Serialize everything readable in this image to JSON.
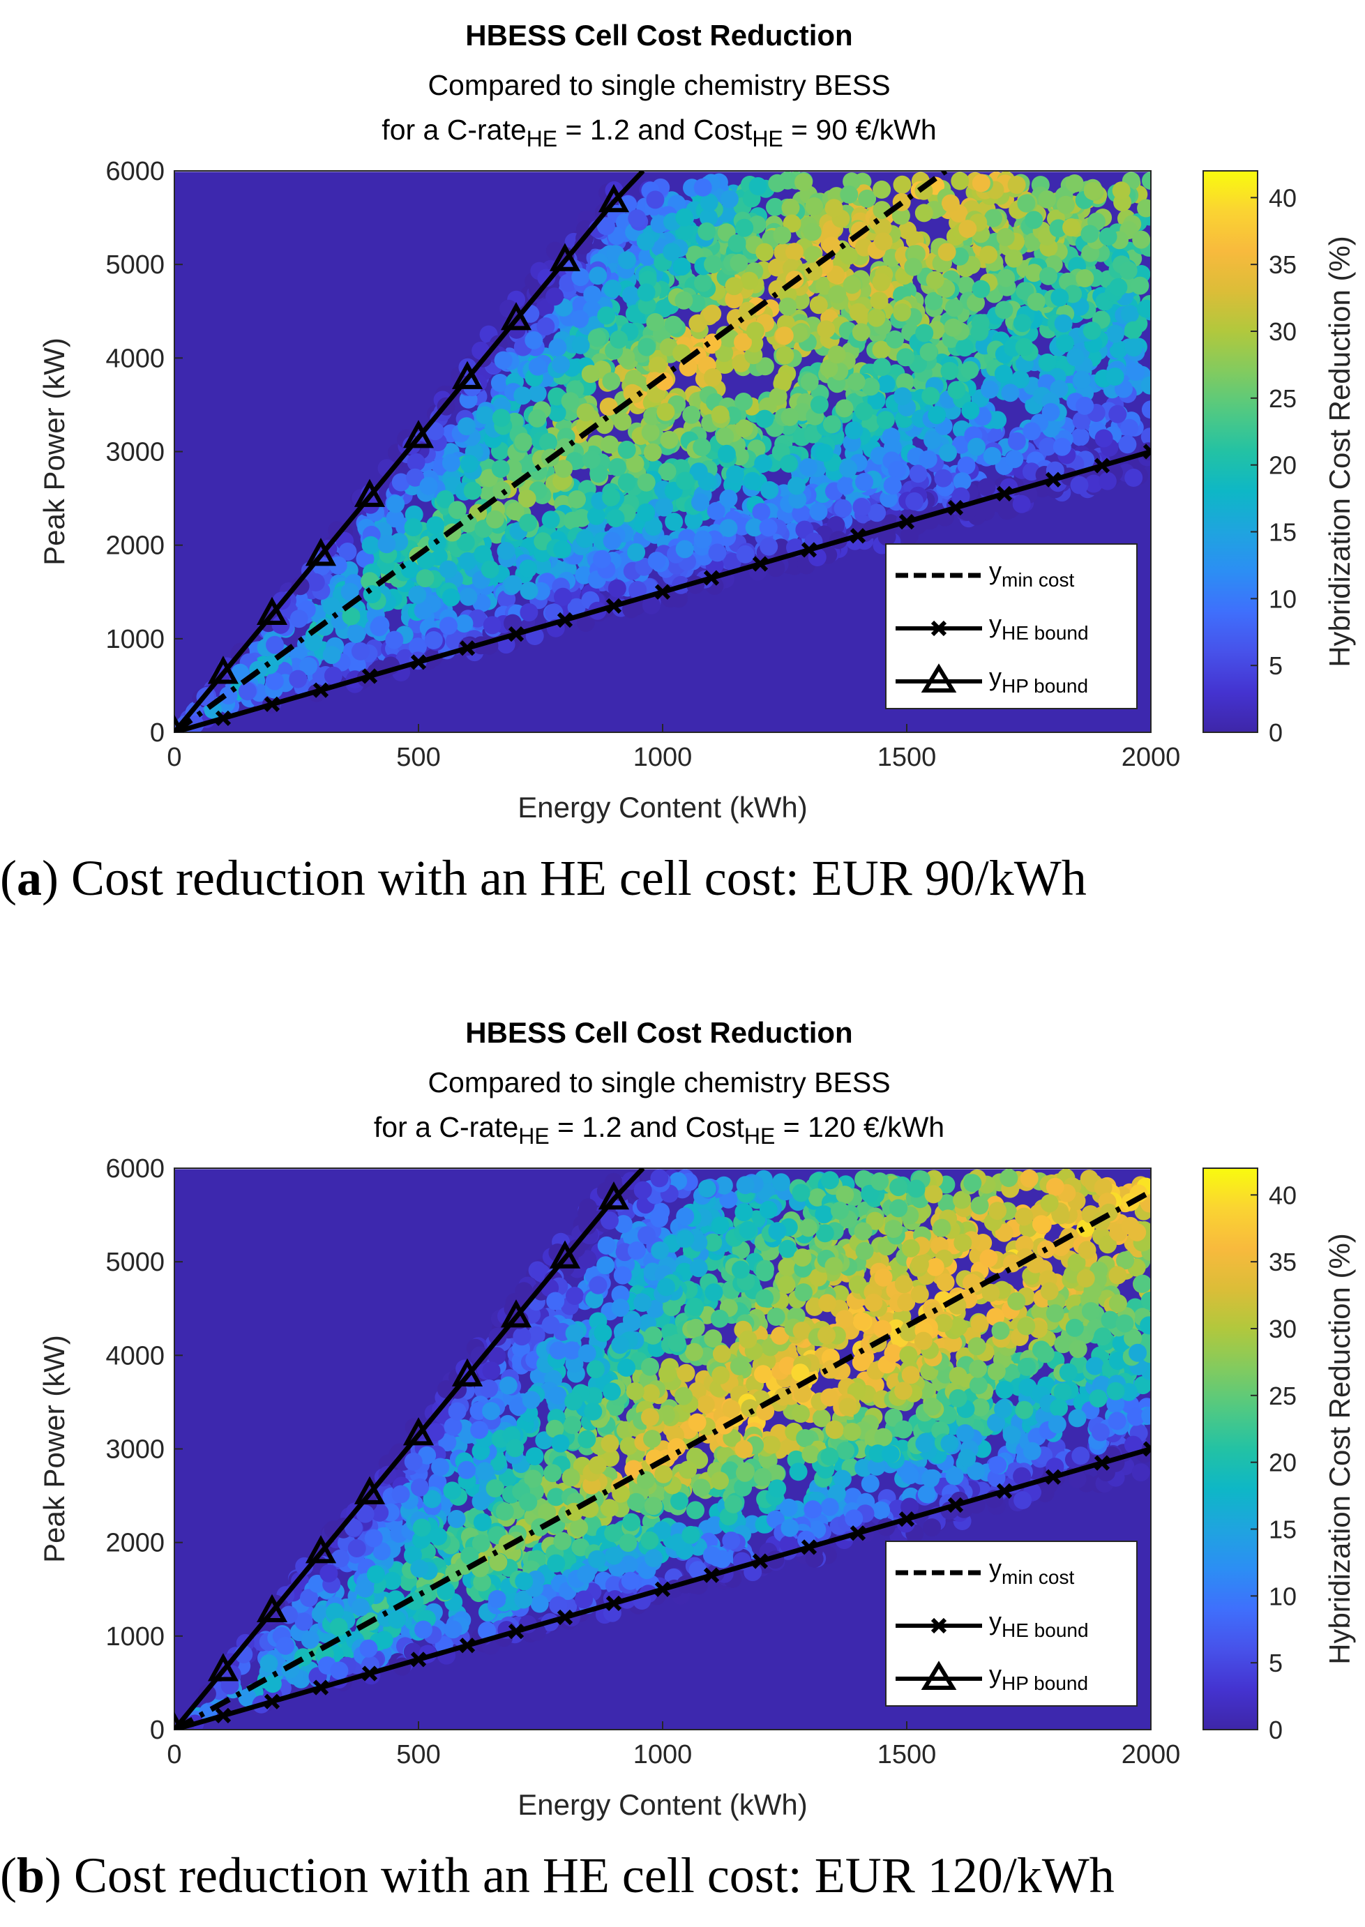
{
  "figures": [
    {
      "id": "a",
      "caption": {
        "letter": "a",
        "text": "Cost reduction with an HE cell cost: EUR 90/kWh"
      },
      "title": "HBESS Cell Cost Reduction",
      "subtitle1": "Compared to single chemistry BESS",
      "subtitle2_prefix": "for a C-rate",
      "subtitle2_sub1": "HE",
      "subtitle2_mid": " = 1.2 and Cost",
      "subtitle2_sub2": "HE",
      "subtitle2_suffix": " = 90 €/kWh"
    },
    {
      "id": "b",
      "caption": {
        "letter": "b",
        "text": "Cost reduction with an HE cell cost: EUR 120/kWh"
      },
      "title": "HBESS Cell Cost Reduction",
      "subtitle1": "Compared to single chemistry BESS",
      "subtitle2_prefix": "for a C-rate",
      "subtitle2_sub1": "HE",
      "subtitle2_mid": " = 1.2 and Cost",
      "subtitle2_sub2": "HE",
      "subtitle2_suffix": " = 120 €/kWh"
    }
  ],
  "chart_data": [
    {
      "type": "scatter",
      "title": "HBESS Cell Cost Reduction",
      "subtitle": "Compared to single chemistry BESS; for a C-rate_HE = 1.2 and Cost_HE = 90 €/kWh",
      "xlabel": "Energy Content (kWh)",
      "ylabel": "Peak Power (kW)",
      "colorbar_label": "Hybridization Cost Reduction (%)",
      "xlim": [
        0,
        2000
      ],
      "ylim": [
        0,
        6000
      ],
      "clim": [
        0,
        42
      ],
      "xticks": [
        0,
        500,
        1000,
        1500,
        2000
      ],
      "yticks": [
        0,
        1000,
        2000,
        3000,
        4000,
        5000,
        6000
      ],
      "cticks": [
        0,
        5,
        10,
        15,
        20,
        25,
        30,
        35,
        40
      ],
      "scatter_region": {
        "x_max": 2000,
        "y_max": 5900,
        "lower_slope": 1.5,
        "upper_slope": 6.3
      },
      "max_reduction_slope": 3.8,
      "peak_value": 33,
      "legend": {
        "position": "bottom-right",
        "entries": [
          "y_min cost",
          "y_HE bound",
          "y_HP bound"
        ]
      },
      "series": [
        {
          "name": "y_min cost",
          "style": "dash-dot",
          "x": [
            0,
            1580
          ],
          "y": [
            0,
            6000
          ]
        },
        {
          "name": "y_HE bound",
          "style": "solid-x-markers",
          "x": [
            0,
            100,
            200,
            300,
            400,
            500,
            600,
            700,
            800,
            900,
            1000,
            1100,
            1200,
            1300,
            1400,
            1500,
            1600,
            1700,
            1800,
            1900,
            2000
          ],
          "y": [
            0,
            150,
            300,
            450,
            600,
            750,
            900,
            1050,
            1200,
            1350,
            1500,
            1650,
            1800,
            1950,
            2100,
            2250,
            2400,
            2550,
            2700,
            2850,
            3000
          ]
        },
        {
          "name": "y_HP bound",
          "style": "solid-triangle-markers",
          "x": [
            0,
            100,
            200,
            300,
            400,
            500,
            600,
            700,
            800,
            900,
            960
          ],
          "y": [
            0,
            630,
            1260,
            1890,
            2520,
            3150,
            3780,
            4410,
            5040,
            5670,
            6000
          ]
        }
      ]
    },
    {
      "type": "scatter",
      "title": "HBESS Cell Cost Reduction",
      "subtitle": "Compared to single chemistry BESS; for a C-rate_HE = 1.2 and Cost_HE = 120 €/kWh",
      "xlabel": "Energy Content (kWh)",
      "ylabel": "Peak Power (kW)",
      "colorbar_label": "Hybridization Cost Reduction (%)",
      "xlim": [
        0,
        2000
      ],
      "ylim": [
        0,
        6000
      ],
      "clim": [
        0,
        42
      ],
      "xticks": [
        0,
        500,
        1000,
        1500,
        2000
      ],
      "yticks": [
        0,
        1000,
        2000,
        3000,
        4000,
        5000,
        6000
      ],
      "cticks": [
        0,
        5,
        10,
        15,
        20,
        25,
        30,
        35,
        40
      ],
      "scatter_region": {
        "x_max": 2000,
        "y_max": 5900,
        "lower_slope": 1.5,
        "upper_slope": 6.3
      },
      "max_reduction_slope": 2.9,
      "peak_value": 36,
      "legend": {
        "position": "bottom-right",
        "entries": [
          "y_min cost",
          "y_HE bound",
          "y_HP bound"
        ]
      },
      "series": [
        {
          "name": "y_min cost",
          "style": "dash-dot",
          "x": [
            0,
            2000
          ],
          "y": [
            0,
            5750
          ]
        },
        {
          "name": "y_HE bound",
          "style": "solid-x-markers",
          "x": [
            0,
            100,
            200,
            300,
            400,
            500,
            600,
            700,
            800,
            900,
            1000,
            1100,
            1200,
            1300,
            1400,
            1500,
            1600,
            1700,
            1800,
            1900,
            2000
          ],
          "y": [
            0,
            150,
            300,
            450,
            600,
            750,
            900,
            1050,
            1200,
            1350,
            1500,
            1650,
            1800,
            1950,
            2100,
            2250,
            2400,
            2550,
            2700,
            2850,
            3000
          ]
        },
        {
          "name": "y_HP bound",
          "style": "solid-triangle-markers",
          "x": [
            0,
            100,
            200,
            300,
            400,
            500,
            600,
            700,
            800,
            900,
            960
          ],
          "y": [
            0,
            630,
            1260,
            1890,
            2520,
            3150,
            3780,
            4410,
            5040,
            5670,
            6000
          ]
        }
      ]
    }
  ]
}
